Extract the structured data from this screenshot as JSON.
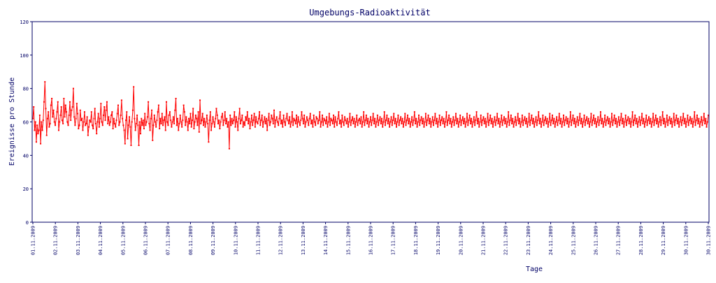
{
  "chart_data": {
    "type": "line",
    "title": "Umgebungs-Radioaktivität",
    "xlabel": "Tage",
    "ylabel": "Ereignisse pro Stunde",
    "ylim": [
      0,
      120
    ],
    "yticks": [
      0,
      20,
      40,
      60,
      80,
      100,
      120
    ],
    "x_tick_labels": [
      "01.11.2009",
      "02.11.2009",
      "03.11.2009",
      "04.11.2009",
      "05.11.2009",
      "06.11.2009",
      "07.11.2009",
      "08.11.2009",
      "09.11.2009",
      "10.11.2009",
      "11.11.2009",
      "12.11.2009",
      "13.11.2009",
      "14.11.2009",
      "15.11.2009",
      "16.11.2009",
      "17.11.2009",
      "18.11.2009",
      "19.11.2009",
      "20.11.2009",
      "21.11.2009",
      "22.11.2009",
      "23.11.2009",
      "24.11.2009",
      "25.11.2009",
      "26.11.2009",
      "27.11.2009",
      "28.11.2009",
      "29.11.2009",
      "30.11.2009",
      "30.11.2009"
    ],
    "x_unit": "hours since first tick label",
    "grid": false,
    "legend": "none",
    "series": [
      {
        "color": "#ff0000",
        "values": [
          62,
          69,
          55,
          60,
          48,
          58,
          53,
          55,
          64,
          47,
          60,
          55,
          61,
          72,
          84,
          68,
          52,
          62,
          66,
          57,
          59,
          70,
          74,
          63,
          67,
          60,
          58,
          62,
          66,
          72,
          55,
          60,
          64,
          69,
          61,
          59,
          74,
          63,
          70,
          66,
          60,
          58,
          64,
          72,
          61,
          67,
          69,
          80,
          63,
          58,
          62,
          71,
          65,
          56,
          58,
          67,
          61,
          62,
          55,
          60,
          66,
          58,
          59,
          63,
          52,
          57,
          61,
          60,
          66,
          58,
          56,
          62,
          68,
          59,
          53,
          60,
          65,
          57,
          62,
          71,
          60,
          58,
          64,
          69,
          61,
          67,
          72,
          59,
          63,
          58,
          60,
          64,
          66,
          56,
          62,
          59,
          57,
          61,
          65,
          70,
          58,
          60,
          64,
          73,
          62,
          58,
          55,
          47,
          61,
          66,
          50,
          58,
          63,
          57,
          46,
          60,
          67,
          81,
          62,
          55,
          59,
          64,
          58,
          46,
          60,
          53,
          62,
          58,
          61,
          56,
          65,
          58,
          60,
          63,
          72,
          59,
          55,
          62,
          67,
          49,
          58,
          64,
          60,
          57,
          61,
          66,
          70,
          56,
          62,
          59,
          65,
          58,
          61,
          63,
          55,
          72,
          60,
          58,
          64,
          66,
          61,
          57,
          60,
          63,
          59,
          67,
          74,
          58,
          62,
          55,
          59,
          64,
          60,
          57,
          61,
          70,
          66,
          58,
          63,
          60,
          55,
          62,
          59,
          65,
          57,
          61,
          68,
          56,
          60,
          64,
          62,
          58,
          66,
          54,
          73,
          59,
          61,
          65,
          58,
          62,
          57,
          60,
          64,
          59,
          48,
          61,
          66,
          55,
          59,
          63,
          60,
          57,
          62,
          68,
          64,
          59,
          61,
          56,
          60,
          63,
          65,
          58,
          61,
          66,
          59,
          62,
          57,
          60,
          44,
          64,
          58,
          62,
          59,
          61,
          66,
          57,
          63,
          60,
          55,
          62,
          68,
          59,
          61,
          64,
          57,
          60,
          58,
          63,
          61,
          66,
          59,
          62,
          56,
          60,
          64,
          58,
          61,
          65,
          57,
          63,
          60,
          59,
          62,
          66,
          58,
          61,
          64,
          57,
          60,
          63,
          59,
          62,
          55,
          61,
          65,
          58,
          60,
          64,
          62,
          59,
          67,
          57,
          61,
          63,
          60,
          58,
          62,
          66,
          59,
          61,
          57,
          64,
          60,
          58,
          62,
          65,
          61,
          59,
          63,
          57,
          60,
          66,
          58,
          62,
          61,
          59,
          64,
          57,
          63,
          60,
          58,
          61,
          66,
          62,
          59,
          64,
          57,
          60,
          63,
          61,
          58,
          62,
          65,
          59,
          61,
          57,
          64,
          60,
          58,
          63,
          62,
          59,
          61,
          66,
          57,
          60,
          64,
          58,
          62,
          61,
          59,
          63,
          57,
          60,
          65,
          58,
          62,
          61,
          59,
          64,
          57,
          63,
          60,
          58,
          62,
          66,
          59,
          61,
          57,
          64,
          60,
          58,
          63,
          61,
          59,
          62,
          57,
          60,
          65,
          58,
          61,
          63,
          59,
          62,
          57,
          60,
          64,
          58,
          61,
          62,
          59,
          63,
          57,
          60,
          66,
          58,
          61,
          64,
          59,
          62,
          57,
          60,
          63,
          58,
          61,
          65,
          59,
          62,
          57,
          60,
          64,
          58,
          61,
          63,
          59,
          62,
          57,
          60,
          66,
          58,
          61,
          64,
          59,
          62,
          57,
          60,
          63,
          58,
          61,
          65,
          59,
          62,
          57,
          60,
          64,
          58,
          61,
          63,
          59,
          62,
          57,
          60,
          65,
          58,
          61,
          64,
          59,
          62,
          57,
          60,
          63,
          58,
          61,
          66,
          59,
          62,
          57,
          60,
          64,
          58,
          61,
          63,
          59,
          62,
          57,
          60,
          65,
          58,
          61,
          64,
          59,
          62,
          57,
          60,
          63,
          58,
          61,
          65,
          59,
          62,
          57,
          60,
          64,
          58,
          61,
          63,
          59,
          62,
          57,
          60,
          66,
          58,
          61,
          64,
          59,
          62,
          57,
          60,
          63,
          58,
          61,
          65,
          59,
          62,
          57,
          60,
          64,
          58,
          61,
          63,
          59,
          62,
          57,
          60,
          65,
          58,
          61,
          64,
          59,
          62,
          57,
          60,
          63,
          58,
          61,
          66,
          59,
          62,
          57,
          60,
          64,
          58,
          61,
          63,
          59,
          62,
          57,
          60,
          65,
          58,
          61,
          64,
          59,
          62,
          57,
          60,
          63,
          58,
          61,
          65,
          59,
          62,
          57,
          60,
          64,
          58,
          61,
          63,
          59,
          62,
          57,
          60,
          66,
          58,
          61,
          64,
          59,
          62,
          57,
          60,
          63,
          58,
          61,
          65,
          59,
          62,
          57,
          60,
          64,
          58,
          61,
          63,
          59,
          62,
          57,
          60,
          65,
          58,
          61,
          64,
          59,
          62,
          57,
          60,
          63,
          58,
          61,
          66,
          59,
          62,
          57,
          60,
          64,
          58,
          61,
          63,
          59,
          62,
          57,
          60,
          65,
          58,
          61,
          64,
          59,
          62,
          57,
          60,
          63,
          58,
          61,
          65,
          59,
          62,
          57,
          60,
          64,
          58,
          61,
          63,
          59,
          62,
          57,
          60,
          66,
          58,
          61,
          64,
          59,
          62,
          57,
          60,
          63,
          58,
          61,
          65,
          59,
          62,
          57,
          60,
          64,
          58,
          61,
          63,
          59,
          62,
          57,
          60,
          65,
          58,
          61,
          64,
          59,
          62,
          57,
          60,
          63,
          58,
          61,
          66,
          59,
          62,
          57,
          60,
          64,
          58,
          61,
          63,
          59,
          62,
          57,
          60,
          65,
          58,
          61,
          64,
          59,
          62,
          57,
          60,
          63,
          58,
          61,
          65,
          59,
          62,
          57,
          60,
          64,
          58,
          61,
          63,
          59,
          62,
          57,
          60,
          66,
          58,
          61,
          64,
          59,
          62,
          57,
          60,
          63,
          58,
          61,
          65,
          59,
          62,
          57,
          60,
          64,
          58,
          61,
          63,
          59,
          62,
          57,
          60,
          65,
          58,
          61,
          64,
          59,
          62,
          57,
          60,
          63,
          58,
          61,
          66,
          59,
          62,
          57,
          60,
          64,
          58,
          61,
          63,
          59,
          62,
          57,
          60,
          65,
          58,
          61,
          64,
          59,
          62,
          57,
          60,
          63,
          58,
          61,
          65,
          59,
          62,
          57,
          60,
          64,
          58,
          61,
          63,
          59,
          62,
          57,
          60,
          66,
          58,
          61,
          64,
          59,
          62,
          57,
          60,
          63,
          58,
          61,
          65,
          59,
          62,
          57,
          60,
          64
        ]
      }
    ]
  }
}
